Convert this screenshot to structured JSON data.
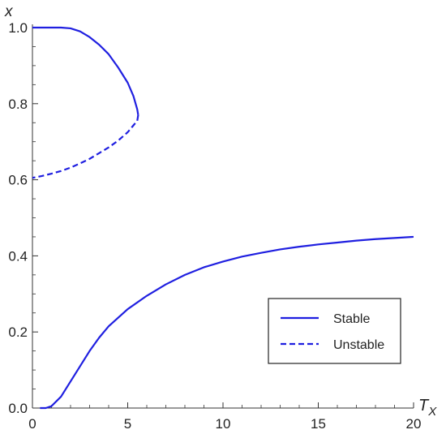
{
  "chart_data": {
    "type": "line",
    "xlabel": "T",
    "xlabel_sub": "X",
    "ylabel": "x",
    "xlim": [
      0,
      20
    ],
    "ylim": [
      0,
      1
    ],
    "xticks": [
      0,
      5,
      10,
      15,
      20
    ],
    "yticks": [
      0.0,
      0.2,
      0.4,
      0.6,
      0.8,
      1.0
    ],
    "xtick_labels": [
      "0",
      "5",
      "10",
      "15",
      "20"
    ],
    "ytick_labels": [
      "0.0",
      "0.2",
      "0.4",
      "0.6",
      "0.8",
      "1.0"
    ],
    "legend_position": "bottom-right",
    "color": "#1f1fe0",
    "series": [
      {
        "name": "Stable",
        "style": "solid",
        "show_in_legend": true,
        "points": [
          [
            0.4,
            0.0
          ],
          [
            0.7,
            0.0
          ],
          [
            1.0,
            0.005
          ],
          [
            1.5,
            0.03
          ],
          [
            2.0,
            0.07
          ],
          [
            2.5,
            0.11
          ],
          [
            3.0,
            0.15
          ],
          [
            3.5,
            0.185
          ],
          [
            4.0,
            0.215
          ],
          [
            5.0,
            0.26
          ],
          [
            6.0,
            0.295
          ],
          [
            7.0,
            0.325
          ],
          [
            8.0,
            0.35
          ],
          [
            9.0,
            0.37
          ],
          [
            10.0,
            0.385
          ],
          [
            11.0,
            0.398
          ],
          [
            12.0,
            0.408
          ],
          [
            13.0,
            0.417
          ],
          [
            14.0,
            0.424
          ],
          [
            15.0,
            0.43
          ],
          [
            16.0,
            0.435
          ],
          [
            17.0,
            0.44
          ],
          [
            18.0,
            0.444
          ],
          [
            19.0,
            0.447
          ],
          [
            20.0,
            0.45
          ]
        ]
      },
      {
        "name": "Stable",
        "style": "solid",
        "show_in_legend": false,
        "points": [
          [
            0.0,
            1.0
          ],
          [
            1.5,
            1.0
          ],
          [
            2.0,
            0.998
          ],
          [
            2.5,
            0.99
          ],
          [
            3.0,
            0.975
          ],
          [
            3.5,
            0.955
          ],
          [
            4.0,
            0.93
          ],
          [
            4.5,
            0.895
          ],
          [
            5.0,
            0.855
          ],
          [
            5.3,
            0.82
          ],
          [
            5.5,
            0.785
          ],
          [
            5.55,
            0.77
          ]
        ]
      },
      {
        "name": "Unstable",
        "style": "dashed",
        "show_in_legend": true,
        "points": [
          [
            5.55,
            0.77
          ],
          [
            5.5,
            0.755
          ],
          [
            5.0,
            0.725
          ],
          [
            4.5,
            0.703
          ],
          [
            4.0,
            0.685
          ],
          [
            3.5,
            0.67
          ],
          [
            3.0,
            0.655
          ],
          [
            2.5,
            0.643
          ],
          [
            2.0,
            0.632
          ],
          [
            1.5,
            0.623
          ],
          [
            1.0,
            0.616
          ],
          [
            0.5,
            0.61
          ],
          [
            0.0,
            0.605
          ]
        ]
      }
    ]
  }
}
